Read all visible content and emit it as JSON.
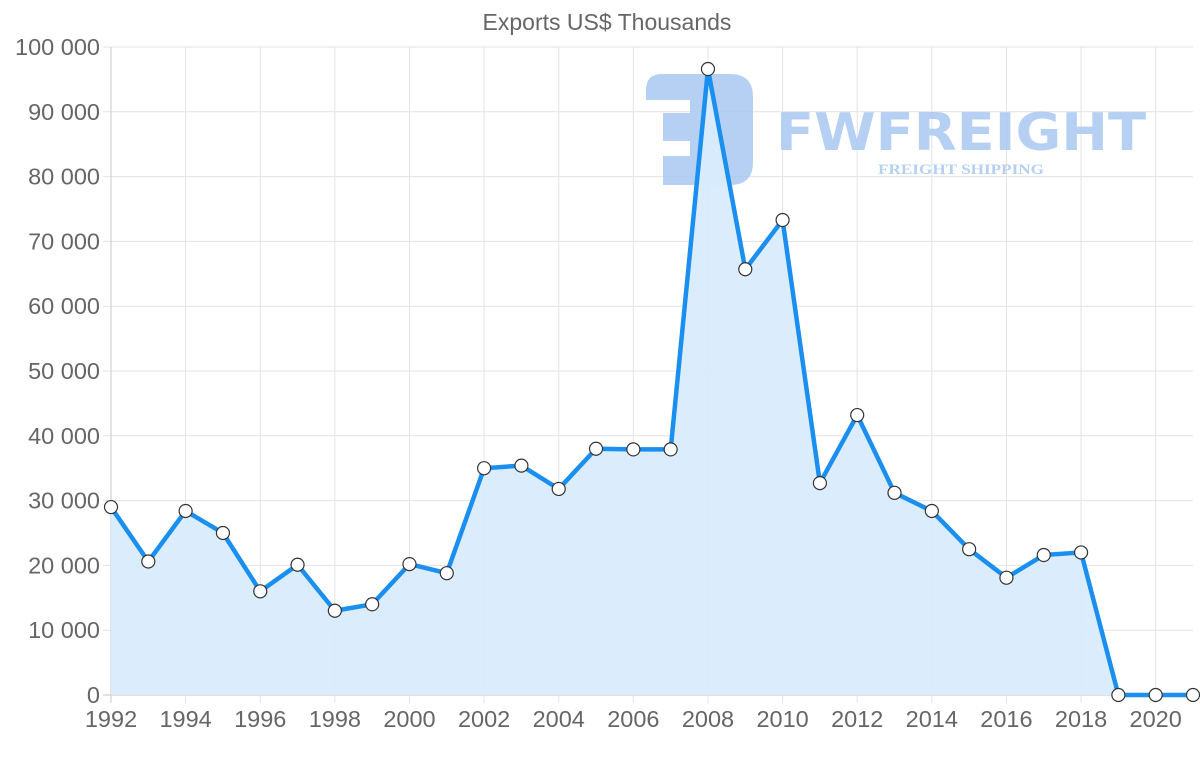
{
  "chart_data": {
    "type": "line",
    "title": "Exports US$ Thousands",
    "xlabel": "",
    "ylabel": "",
    "x": [
      1992,
      1993,
      1994,
      1995,
      1996,
      1997,
      1998,
      1999,
      2000,
      2001,
      2002,
      2003,
      2004,
      2005,
      2006,
      2007,
      2008,
      2009,
      2010,
      2011,
      2012,
      2013,
      2014,
      2015,
      2016,
      2017,
      2018,
      2019,
      2020,
      2021
    ],
    "series": [
      {
        "name": "Exports US$ Thousands",
        "values": [
          29000,
          20600,
          28400,
          25000,
          16000,
          20100,
          13000,
          14000,
          20200,
          18800,
          35000,
          35400,
          31800,
          38000,
          37900,
          37900,
          96600,
          65700,
          73300,
          32700,
          43200,
          31200,
          28400,
          22500,
          18100,
          21600,
          22000,
          0,
          0,
          0
        ],
        "line_color": "#1a8ff0",
        "fill_color": "#d9ecfc",
        "fill": true,
        "point_fill": "#ffffff",
        "point_stroke": "#333333"
      }
    ],
    "ylim": [
      0,
      100000
    ],
    "y_ticks": [
      0,
      10000,
      20000,
      30000,
      40000,
      50000,
      60000,
      70000,
      80000,
      90000,
      100000
    ],
    "y_tick_labels": [
      "0",
      "10 000",
      "20 000",
      "30 000",
      "40 000",
      "50 000",
      "60 000",
      "70 000",
      "80 000",
      "90 000",
      "100 000"
    ],
    "x_tick_labels": [
      "1992",
      "1994",
      "1996",
      "1998",
      "2000",
      "2002",
      "2004",
      "2006",
      "2008",
      "2010",
      "2012",
      "2014",
      "2016",
      "2018",
      "2020"
    ],
    "grid": true,
    "legend": "none"
  },
  "watermark": {
    "brand": "FWFREIGHT",
    "tagline": "FREIGHT SHIPPING",
    "color": "#a9c8f2",
    "icon": "fwfreight-logo-icon"
  }
}
